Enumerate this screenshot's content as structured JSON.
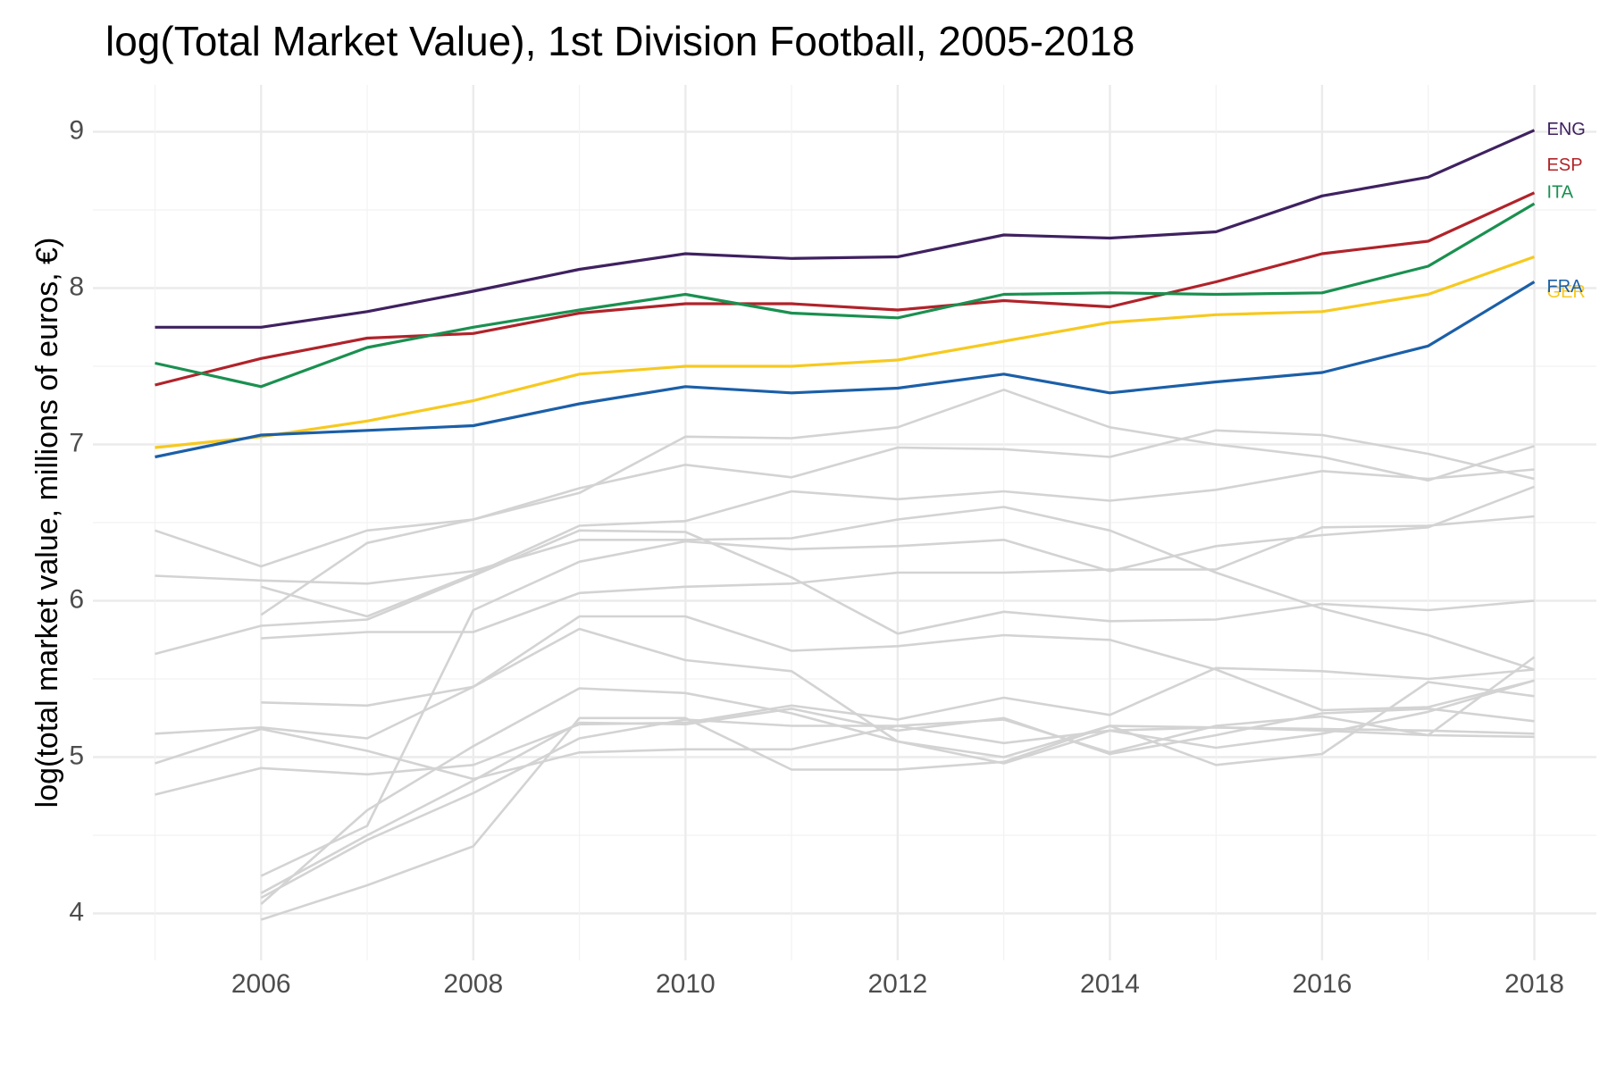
{
  "chart_data": {
    "type": "line",
    "title": "log(Total Market Value), 1st Division Football, 2005-2018",
    "xlabel": "",
    "ylabel": "log(total market value, millions of euros, €)",
    "xlim": [
      2005,
      2018
    ],
    "ylim": [
      3.7,
      9.3
    ],
    "x_ticks": [
      2006,
      2008,
      2010,
      2012,
      2014,
      2016,
      2018
    ],
    "y_ticks": [
      4,
      5,
      6,
      7,
      8,
      9
    ],
    "grid": true,
    "legend": "direct labels at right end of lines",
    "x": [
      2005,
      2006,
      2007,
      2008,
      2009,
      2010,
      2011,
      2012,
      2013,
      2014,
      2015,
      2016,
      2017,
      2018
    ],
    "highlighted_series": [
      {
        "name": "ENG",
        "color": "#3f2160",
        "values": [
          7.75,
          7.75,
          7.85,
          7.98,
          8.12,
          8.22,
          8.19,
          8.2,
          8.34,
          8.32,
          8.36,
          8.59,
          8.71,
          9.01
        ]
      },
      {
        "name": "ESP",
        "color": "#b0232a",
        "values": [
          7.38,
          7.55,
          7.68,
          7.71,
          7.84,
          7.9,
          7.9,
          7.86,
          7.92,
          7.88,
          8.04,
          8.22,
          8.3,
          8.61
        ]
      },
      {
        "name": "ITA",
        "color": "#1a9050",
        "values": [
          7.52,
          7.37,
          7.62,
          7.75,
          7.86,
          7.96,
          7.84,
          7.81,
          7.96,
          7.97,
          7.96,
          7.97,
          8.14,
          8.54
        ]
      },
      {
        "name": "GER",
        "color": "#f7c91f",
        "values": [
          6.98,
          7.05,
          7.15,
          7.28,
          7.45,
          7.5,
          7.5,
          7.54,
          7.66,
          7.78,
          7.83,
          7.85,
          7.96,
          8.2
        ]
      },
      {
        "name": "FRA",
        "color": "#1b5fa8",
        "values": [
          6.92,
          7.06,
          7.09,
          7.12,
          7.26,
          7.37,
          7.33,
          7.36,
          7.45,
          7.33,
          7.4,
          7.46,
          7.63,
          8.04
        ]
      }
    ],
    "background_series_color": "#d3d3d3",
    "background_series": [
      {
        "values": [
          6.45,
          6.22,
          6.45,
          6.52,
          6.72,
          6.87,
          6.79,
          6.98,
          6.97,
          6.92,
          7.09,
          7.06,
          6.94,
          6.78
        ]
      },
      {
        "values": [
          6.16,
          6.13,
          6.11,
          6.19,
          6.39,
          6.39,
          6.4,
          6.52,
          6.6,
          6.45,
          6.18,
          5.95,
          5.78,
          5.56
        ]
      },
      {
        "values": [
          5.66,
          5.84,
          5.88,
          6.16,
          6.45,
          6.44,
          6.15,
          5.79,
          5.93,
          5.87,
          5.88,
          5.98,
          5.94,
          6.0
        ]
      },
      {
        "values": [
          5.15,
          5.19,
          5.12,
          5.45,
          5.82,
          5.62,
          5.55,
          5.1,
          5.0,
          5.2,
          5.19,
          5.17,
          5.14,
          5.64
        ]
      },
      {
        "values": [
          4.96,
          5.18,
          5.04,
          4.86,
          5.03,
          5.05,
          5.05,
          5.2,
          5.09,
          5.17,
          5.06,
          5.15,
          5.29,
          5.49
        ]
      },
      {
        "values": [
          4.76,
          4.93,
          4.89,
          4.95,
          5.21,
          5.22,
          5.33,
          5.24,
          5.38,
          5.27,
          5.57,
          5.55,
          5.5,
          5.56
        ]
      },
      {
        "values": [
          null,
          6.09,
          5.9,
          6.17,
          6.48,
          6.51,
          6.7,
          6.65,
          6.7,
          6.64,
          6.71,
          6.83,
          6.78,
          6.84
        ]
      },
      {
        "values": [
          null,
          5.91,
          6.37,
          6.52,
          6.69,
          7.05,
          7.04,
          7.11,
          7.35,
          7.11,
          7.0,
          6.92,
          6.77,
          6.99
        ]
      },
      {
        "values": [
          null,
          5.76,
          5.8,
          5.8,
          6.05,
          6.09,
          6.11,
          6.18,
          6.18,
          6.2,
          6.2,
          6.47,
          6.48,
          6.54
        ]
      },
      {
        "values": [
          null,
          5.35,
          5.33,
          5.45,
          5.9,
          5.9,
          5.68,
          5.71,
          5.78,
          5.75,
          5.56,
          5.3,
          5.32,
          5.49
        ]
      },
      {
        "values": [
          null,
          4.24,
          4.56,
          5.94,
          6.25,
          6.38,
          6.33,
          6.35,
          6.39,
          6.19,
          6.35,
          6.42,
          6.47,
          6.73
        ]
      },
      {
        "values": [
          null,
          4.13,
          4.5,
          4.85,
          5.22,
          5.21,
          5.31,
          5.17,
          5.25,
          5.02,
          5.14,
          5.28,
          5.31,
          5.23
        ]
      },
      {
        "values": [
          null,
          4.1,
          4.47,
          4.77,
          5.12,
          5.24,
          5.2,
          5.2,
          5.24,
          5.03,
          5.2,
          5.26,
          5.14,
          5.13
        ]
      },
      {
        "values": [
          null,
          4.06,
          4.66,
          5.07,
          5.44,
          5.41,
          5.28,
          5.1,
          4.96,
          5.17,
          5.19,
          5.18,
          5.17,
          5.15
        ]
      },
      {
        "values": [
          null,
          3.96,
          4.18,
          4.43,
          5.25,
          5.25,
          4.92,
          4.92,
          4.97,
          5.2,
          4.95,
          5.02,
          5.48,
          5.39
        ]
      }
    ]
  }
}
